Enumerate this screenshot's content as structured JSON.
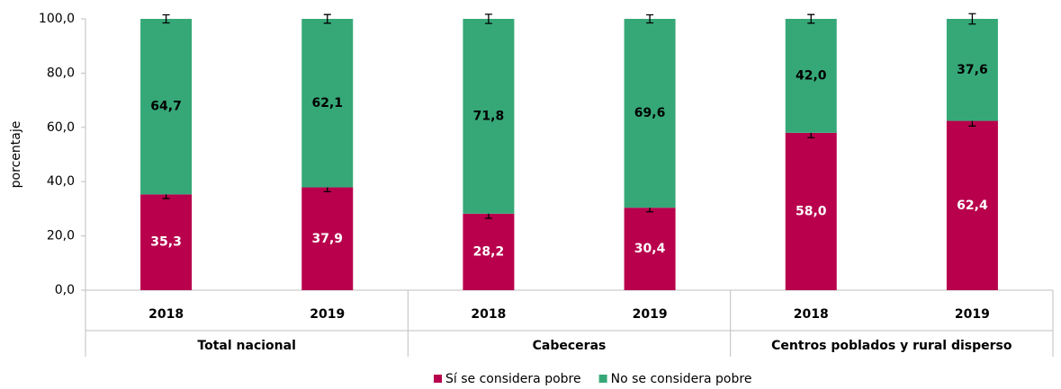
{
  "chart_data": {
    "type": "bar",
    "stacked": true,
    "y_label": "porcentaje",
    "categories": [
      "2018",
      "2019",
      "2018",
      "2019",
      "2018",
      "2019"
    ],
    "groups": [
      "Total nacional",
      "Cabeceras",
      "Centros poblados y rural disperso"
    ],
    "series": [
      {
        "name": "Sí se considera pobre",
        "color": "#b8004c",
        "values": [
          35.3,
          37.9,
          28.2,
          30.4,
          58.0,
          62.4
        ],
        "value_labels": [
          "35,3",
          "37,9",
          "28,2",
          "30,4",
          "58,0",
          "62,4"
        ],
        "errors": [
          1.5,
          1.6,
          1.7,
          1.5,
          1.8,
          1.9
        ]
      },
      {
        "name": "No se considera pobre",
        "color": "#36a878",
        "values": [
          64.7,
          62.1,
          71.8,
          69.6,
          42.0,
          37.6
        ],
        "value_labels": [
          "64,7",
          "62,1",
          "71,8",
          "69,6",
          "42,0",
          "37,6"
        ],
        "errors": [
          1.5,
          1.6,
          1.7,
          1.5,
          1.6,
          1.9
        ]
      }
    ],
    "ylim": [
      0,
      100
    ],
    "yticks": [
      {
        "value": 0,
        "label": "0,0"
      },
      {
        "value": 20,
        "label": "20,0"
      },
      {
        "value": 40,
        "label": "40,0"
      },
      {
        "value": 60,
        "label": "60,0"
      },
      {
        "value": 80,
        "label": "80,0"
      },
      {
        "value": 100,
        "label": "100,0"
      }
    ],
    "legend": "bottom"
  }
}
